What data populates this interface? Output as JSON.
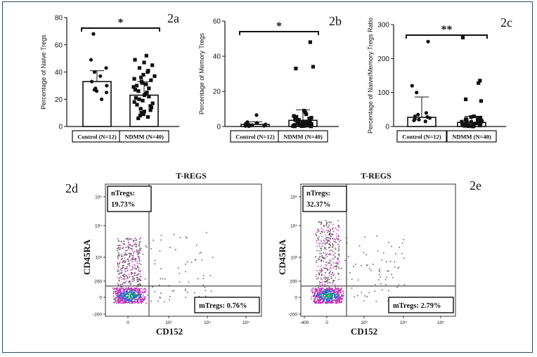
{
  "chart_data": [
    {
      "id": "2a",
      "type": "bar",
      "panel_label": "2a",
      "ylabel": "Percentage of Naive Tregs",
      "ylim": [
        0,
        80
      ],
      "yticks": [
        "0",
        "20",
        "40",
        "60",
        "80"
      ],
      "categories": [
        "Control (N=12)",
        "NDMM (N=40)"
      ],
      "values": [
        33,
        23
      ],
      "error": [
        8,
        10
      ],
      "significance": "*",
      "points": [
        [
          68,
          49,
          43,
          40,
          37,
          33,
          30,
          28,
          27,
          26,
          25,
          20
        ],
        [
          52,
          49,
          47,
          45,
          43,
          41,
          40,
          38,
          37,
          36,
          35,
          34,
          33,
          32,
          31,
          30,
          29,
          28,
          27,
          26,
          25,
          24,
          23,
          22,
          21,
          20,
          19,
          18,
          17,
          16,
          15,
          14,
          13,
          12,
          11,
          10,
          9,
          8,
          7,
          6
        ]
      ]
    },
    {
      "id": "2b",
      "type": "bar",
      "panel_label": "2b",
      "ylabel": "Percentage of Memory Tregs",
      "ylim": [
        0,
        60
      ],
      "yticks": [
        "0",
        "20",
        "40",
        "60"
      ],
      "categories": [
        "Control (N=12)",
        "NDMM (N=40)"
      ],
      "values": [
        1.2,
        3.5
      ],
      "error": [
        1.5,
        6
      ],
      "significance": "*",
      "points": [
        [
          6.5,
          2.5,
          2,
          1.5,
          1.2,
          1,
          0.8,
          0.6,
          0.5,
          0.4,
          0.3,
          0.2
        ],
        [
          48,
          34,
          33,
          9,
          8,
          7,
          6,
          5.5,
          5,
          4.5,
          4,
          3.8,
          3.5,
          3.2,
          3,
          2.8,
          2.6,
          2.4,
          2.2,
          2,
          1.8,
          1.6,
          1.5,
          1.4,
          1.3,
          1.2,
          1.1,
          1,
          0.9,
          0.8,
          0.7,
          0.6,
          0.5,
          0.4,
          0.3,
          0.3,
          0.2,
          0.2,
          0.1,
          0.1
        ]
      ]
    },
    {
      "id": "2c",
      "type": "bar",
      "panel_label": "2c",
      "ylabel": "Percentage of Naive/Memory Tregs Ratio",
      "ylim": [
        0,
        300
      ],
      "yticks": [
        "0",
        "100",
        "200",
        "300"
      ],
      "categories": [
        "Control (N=12)",
        "NDMM (N=40)"
      ],
      "values": [
        27,
        12
      ],
      "error": [
        60,
        18
      ],
      "significance": "**",
      "points": [
        [
          250,
          120,
          100,
          40,
          35,
          30,
          28,
          25,
          22,
          20,
          18,
          15
        ],
        [
          262,
          135,
          128,
          80,
          75,
          30,
          28,
          26,
          24,
          22,
          20,
          18,
          17,
          16,
          15,
          14,
          13,
          12,
          11,
          10,
          9,
          8,
          7,
          6,
          5,
          5,
          4,
          4,
          3,
          3,
          2,
          2,
          2,
          1,
          1,
          1,
          1,
          0.5,
          0.5,
          0.5
        ]
      ]
    },
    {
      "id": "2d",
      "type": "scatter",
      "panel_label": "2d",
      "title": "T-REGS",
      "xlabel": "CD152",
      "ylabel": "CD45RA",
      "xticks": [
        "0",
        "10³",
        "10⁴",
        "10⁵"
      ],
      "yticks": [
        "-200",
        "0",
        "200",
        "10³",
        "10⁴",
        "10⁵"
      ],
      "gate_upper_left": {
        "name": "nTregs:",
        "value": "19.73%"
      },
      "gate_lower_right": {
        "name": "mTregs:",
        "value": "0.76%"
      }
    },
    {
      "id": "2e",
      "type": "scatter",
      "panel_label": "2e",
      "title": "T-REGS",
      "xlabel": "CD152",
      "ylabel": "CD45RA",
      "xticks": [
        "-400",
        "0",
        "10³",
        "10⁴",
        "10⁵"
      ],
      "yticks": [
        "-200",
        "0",
        "200",
        "10³",
        "10⁴",
        "10⁵"
      ],
      "gate_upper_left": {
        "name": "nTregs:",
        "value": "32.37%"
      },
      "gate_lower_right": {
        "name": "mTregs:",
        "value": "2.79%"
      }
    }
  ]
}
